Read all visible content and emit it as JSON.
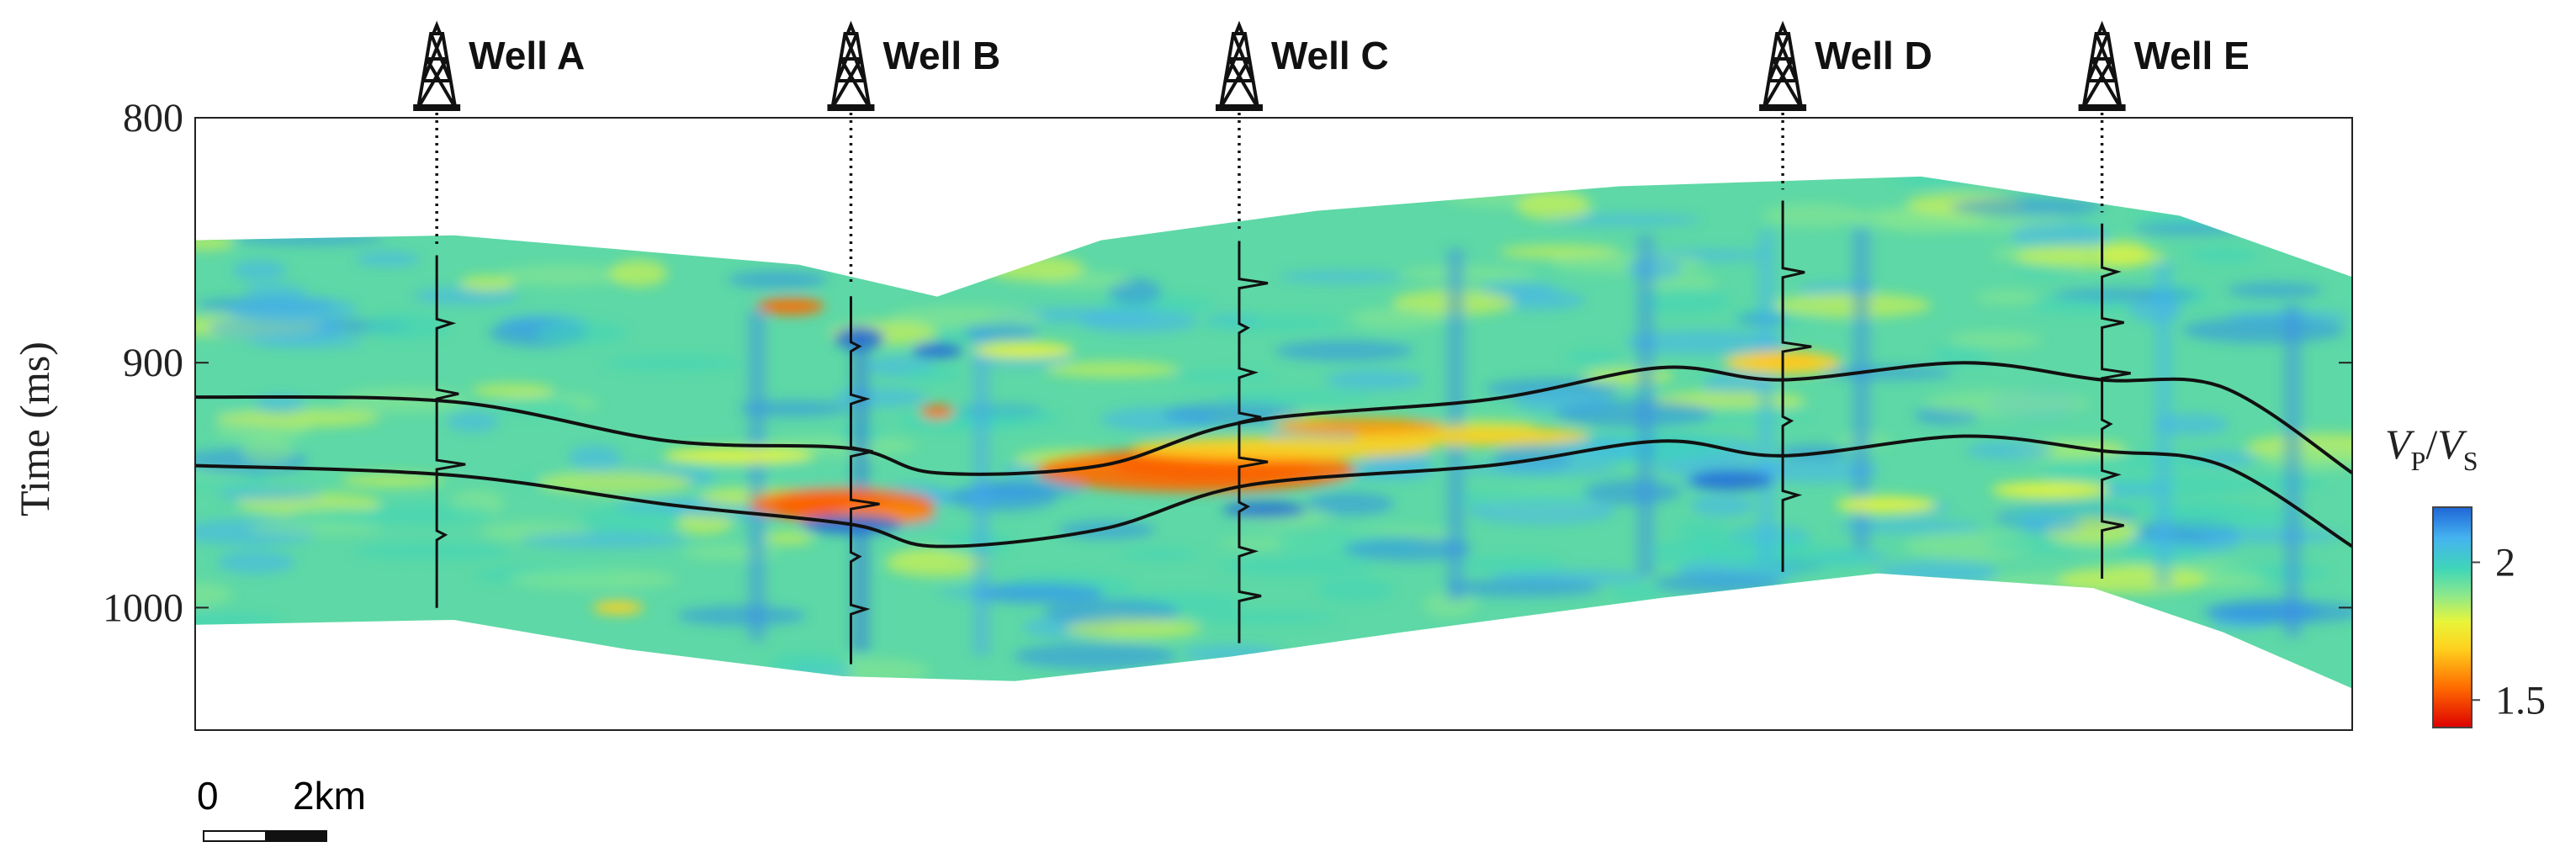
{
  "chart_data": {
    "type": "heatmap",
    "ylabel": "Time (ms)",
    "y_ticks": [
      800,
      900,
      1000
    ],
    "ylim": [
      800,
      1050
    ],
    "colorbar": {
      "title": "VP/VS",
      "label_main_1": "V",
      "label_sub_1": "P",
      "label_slash": "/",
      "label_main_2": "V",
      "label_sub_2": "S",
      "ticks": [
        "2",
        "1.5"
      ],
      "tick_values": [
        2,
        1.5
      ],
      "range": [
        1.4,
        2.2
      ],
      "colors": [
        "#dd0000",
        "#ff6a00",
        "#ffd21e",
        "#e8f53a",
        "#8ce88c",
        "#3fd6b8",
        "#45b3f0",
        "#1f66d8"
      ]
    },
    "scale_bar": {
      "labels": [
        "0",
        "2km"
      ]
    },
    "wells": [
      {
        "name": "Well A",
        "x": 2.8
      },
      {
        "name": "Well B",
        "x": 7.6
      },
      {
        "name": "Well C",
        "x": 12.1
      },
      {
        "name": "Well D",
        "x": 18.4
      },
      {
        "name": "Well E",
        "x": 22.1
      }
    ],
    "horizons": [
      {
        "name": "upper",
        "points": [
          [
            0,
            914
          ],
          [
            3,
            916
          ],
          [
            5.5,
            932
          ],
          [
            7.6,
            935
          ],
          [
            8.6,
            945
          ],
          [
            10.5,
            942
          ],
          [
            12.2,
            924
          ],
          [
            15,
            915
          ],
          [
            17,
            902
          ],
          [
            18.4,
            907
          ],
          [
            20.5,
            900
          ],
          [
            22.1,
            907
          ],
          [
            23.5,
            910
          ],
          [
            25,
            945
          ]
        ]
      },
      {
        "name": "lower",
        "points": [
          [
            0,
            942
          ],
          [
            3,
            946
          ],
          [
            5.5,
            958
          ],
          [
            7.6,
            966
          ],
          [
            8.6,
            975
          ],
          [
            10.5,
            968
          ],
          [
            12.2,
            950
          ],
          [
            15,
            942
          ],
          [
            17,
            932
          ],
          [
            18.4,
            938
          ],
          [
            20.5,
            930
          ],
          [
            22.1,
            936
          ],
          [
            23.5,
            942
          ],
          [
            25,
            975
          ]
        ]
      }
    ],
    "section": {
      "top": [
        [
          0,
          850
        ],
        [
          3,
          848
        ],
        [
          7,
          860
        ],
        [
          8.6,
          873
        ],
        [
          10.5,
          850
        ],
        [
          13,
          838
        ],
        [
          16.5,
          828
        ],
        [
          20,
          824
        ],
        [
          23,
          840
        ],
        [
          25,
          865
        ]
      ],
      "bottom": [
        [
          0,
          1007
        ],
        [
          3,
          1005
        ],
        [
          5,
          1017
        ],
        [
          7.5,
          1028
        ],
        [
          9.5,
          1030
        ],
        [
          12,
          1020
        ],
        [
          14,
          1010
        ],
        [
          17,
          996
        ],
        [
          19.5,
          986
        ],
        [
          22,
          992
        ],
        [
          23.5,
          1010
        ],
        [
          25,
          1033
        ]
      ]
    }
  }
}
